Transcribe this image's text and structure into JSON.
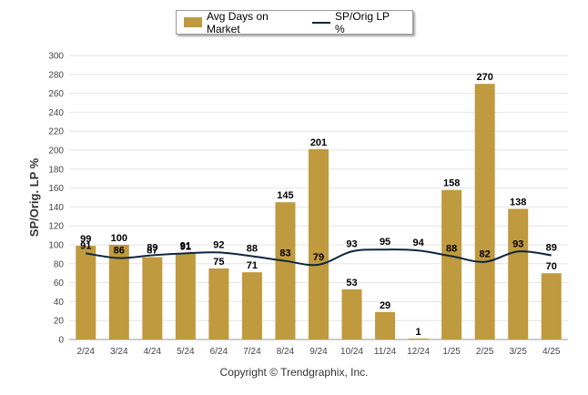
{
  "legend": {
    "bar_label": "Avg Days on Market",
    "line_label": "SP/Orig LP %"
  },
  "copyright": "Copyright © Trendgraphix, Inc.",
  "chart_data": {
    "type": "bar",
    "categories": [
      "2/24",
      "3/24",
      "4/24",
      "5/24",
      "6/24",
      "7/24",
      "8/24",
      "9/24",
      "10/24",
      "11/24",
      "12/24",
      "1/25",
      "2/25",
      "3/25",
      "4/25"
    ],
    "ylabel": "SP/Orig. LP %",
    "ylim": [
      0,
      300
    ],
    "yticks": [
      0,
      20,
      40,
      60,
      80,
      100,
      120,
      140,
      160,
      180,
      200,
      220,
      240,
      260,
      280,
      300
    ],
    "grid": true,
    "legend_position": "top",
    "series": [
      {
        "name": "Avg Days on Market",
        "type": "bar",
        "color": "#bf9a3e",
        "values": [
          99,
          100,
          87,
          91,
          75,
          71,
          145,
          201,
          53,
          29,
          1,
          158,
          270,
          138,
          70
        ]
      },
      {
        "name": "SP/Orig LP %",
        "type": "line",
        "color": "#0f2540",
        "values": [
          91,
          86,
          89,
          91,
          92,
          88,
          83,
          79,
          93,
          95,
          94,
          88,
          82,
          93,
          89
        ]
      }
    ]
  }
}
